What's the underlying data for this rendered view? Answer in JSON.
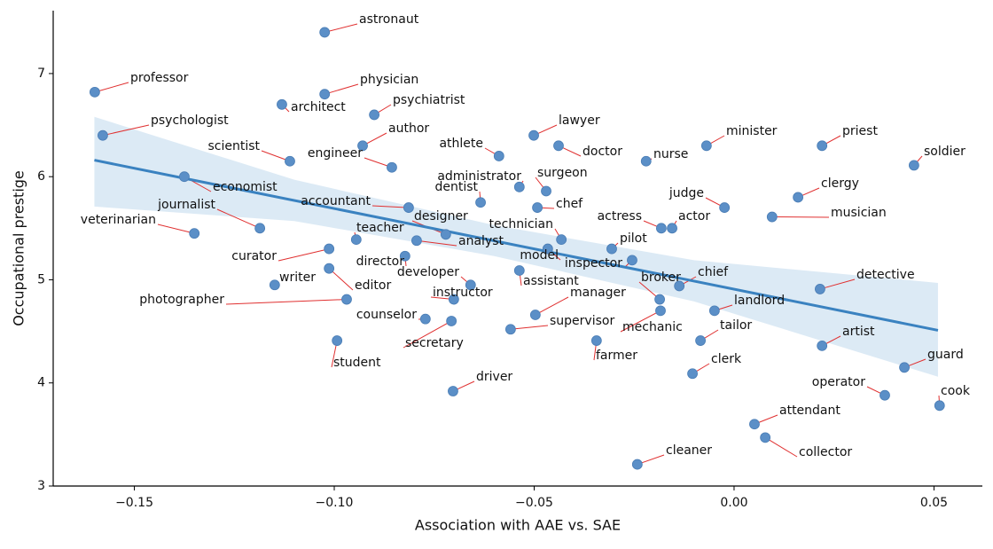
{
  "chart_data": {
    "type": "scatter",
    "xlabel": "Association with AAE vs. SAE",
    "ylabel": "Occupational prestige",
    "xlim": [
      -0.1703,
      0.0621
    ],
    "ylim": [
      3.0,
      7.61
    ],
    "xticks": [
      {
        "value": -0.15,
        "label": "−0.15"
      },
      {
        "value": -0.1,
        "label": "−0.10"
      },
      {
        "value": -0.05,
        "label": "−0.05"
      },
      {
        "value": 0,
        "label": "0.00"
      },
      0.05
    ],
    "yticks": [
      3,
      4,
      5,
      6,
      7
    ],
    "color": "#5b8fc7",
    "labels": [
      "astronaut",
      "professor",
      "physician",
      "architect",
      "psychiatrist",
      "psychologist",
      "lawyer",
      "author",
      "doctor",
      "minister",
      "priest",
      "scientist",
      "athlete",
      "nurse",
      "engineer",
      "soldier",
      "economist",
      "administrator",
      "surgeon",
      "clergy",
      "dentist",
      "accountant",
      "chef",
      "judge",
      "musician",
      "actress",
      "actor",
      "journalist",
      "veterinarian",
      "designer",
      "teacher",
      "analyst",
      "technician",
      "curator",
      "model",
      "pilot",
      "director",
      "inspector",
      "editor",
      "assistant",
      "writer",
      "developer",
      "chief",
      "detective",
      "instructor",
      "broker",
      "photographer",
      "landlord",
      "mechanic",
      "manager",
      "counselor",
      "secretary",
      "supervisor",
      "student",
      "farmer",
      "tailor",
      "artist",
      "guard",
      "clerk",
      "driver",
      "operator",
      "cook",
      "attendant",
      "collector",
      "cleaner"
    ],
    "x": [
      -0.1024,
      -0.1599,
      -0.1024,
      -0.1131,
      -0.09,
      -0.1579,
      -0.0501,
      -0.0929,
      -0.0439,
      -0.0069,
      0.022,
      -0.1111,
      -0.0588,
      -0.022,
      -0.0856,
      0.045,
      -0.1375,
      -0.0537,
      -0.047,
      0.016,
      -0.0634,
      -0.0814,
      -0.0492,
      -0.0024,
      0.0095,
      -0.0182,
      -0.0155,
      -0.1186,
      -0.135,
      -0.0721,
      -0.0945,
      -0.0794,
      -0.0432,
      -0.1013,
      -0.0466,
      -0.0306,
      -0.0823,
      -0.0255,
      -0.1013,
      -0.0537,
      -0.1149,
      -0.0659,
      -0.0137,
      0.0215,
      -0.0701,
      -0.0186,
      -0.0969,
      -0.0049,
      -0.0184,
      -0.0497,
      -0.0772,
      -0.0707,
      -0.0559,
      -0.0993,
      -0.0344,
      -0.0084,
      0.022,
      0.0426,
      -0.0104,
      -0.0703,
      0.0377,
      0.0514,
      0.0051,
      0.0078,
      -0.0242
    ],
    "values": [
      7.4,
      6.82,
      6.8,
      6.7,
      6.6,
      6.4,
      6.4,
      6.3,
      6.3,
      6.3,
      6.3,
      6.15,
      6.2,
      6.15,
      6.09,
      6.11,
      6.0,
      5.9,
      5.86,
      5.8,
      5.75,
      5.7,
      5.7,
      5.7,
      5.61,
      5.5,
      5.5,
      5.5,
      5.45,
      5.44,
      5.39,
      5.38,
      5.39,
      5.3,
      5.3,
      5.3,
      5.23,
      5.19,
      5.11,
      5.09,
      4.95,
      4.95,
      4.94,
      4.91,
      4.81,
      4.81,
      4.81,
      4.7,
      4.7,
      4.66,
      4.62,
      4.6,
      4.52,
      4.41,
      4.41,
      4.41,
      4.36,
      4.15,
      4.09,
      3.92,
      3.88,
      3.78,
      3.6,
      3.47,
      3.21
    ],
    "regression": {
      "color": "#3a82c0",
      "x": [
        -0.16,
        0.051
      ],
      "y": [
        6.16,
        4.51
      ]
    },
    "band": {
      "color": "#d6e6f3",
      "x": [
        -0.16,
        -0.11,
        -0.06,
        -0.01,
        0.051
      ],
      "upper": [
        6.58,
        5.97,
        5.53,
        5.19,
        4.97
      ],
      "lower": [
        5.71,
        5.57,
        5.23,
        4.79,
        4.06
      ]
    }
  }
}
